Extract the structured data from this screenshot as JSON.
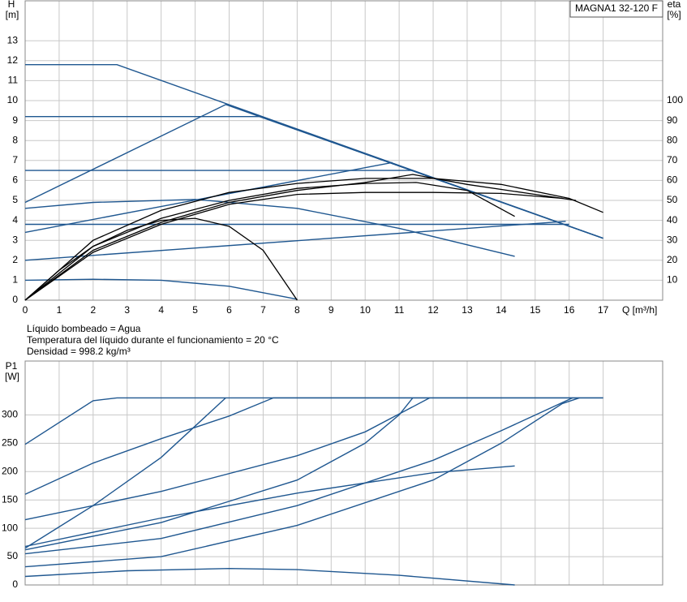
{
  "chart_data": [
    {
      "type": "line",
      "title": "MAGNA1 32-120 F",
      "y_label": "H",
      "y_unit": "[m]",
      "y2_label": "eta",
      "y2_unit": "[%]",
      "x_label": "Q [m³/h]",
      "xlim": [
        0,
        18.75
      ],
      "xticks": [
        0,
        1,
        2,
        3,
        4,
        5,
        6,
        7,
        8,
        9,
        10,
        11,
        12,
        13,
        14,
        15,
        16,
        17
      ],
      "ylim": [
        0,
        15
      ],
      "yticks": [
        0,
        1,
        2,
        3,
        4,
        5,
        6,
        7,
        8,
        9,
        10,
        11,
        12,
        13
      ],
      "y2lim": [
        0,
        150
      ],
      "y2ticks": [
        10,
        20,
        30,
        40,
        50,
        60,
        70,
        80,
        90,
        100
      ],
      "grid": true,
      "annotations": [
        "Líquido bombeado = Agua",
        "Temperatura del líquido durante el funcionamiento = 20 °C",
        "Densidad = 998.2 kg/m³"
      ],
      "series": [
        {
          "color": "#1f5790",
          "x": [
            0,
            2.7,
            17
          ],
          "values": [
            11.8,
            11.8,
            3.1
          ]
        },
        {
          "color": "#1f5790",
          "x": [
            0,
            6.9,
            17
          ],
          "values": [
            9.2,
            9.2,
            3.1
          ]
        },
        {
          "color": "#1f5790",
          "x": [
            0,
            5.9,
            17
          ],
          "values": [
            4.9,
            9.8,
            3.1
          ]
        },
        {
          "color": "#1f5790",
          "x": [
            0,
            11.4
          ],
          "values": [
            6.5,
            6.5
          ]
        },
        {
          "color": "#1f5790",
          "x": [
            0,
            10.8
          ],
          "values": [
            3.4,
            6.9
          ]
        },
        {
          "color": "#1f5790",
          "x": [
            0,
            16
          ],
          "values": [
            3.8,
            3.8
          ]
        },
        {
          "color": "#1f5790",
          "x": [
            0,
            15.9
          ],
          "values": [
            2.0,
            3.95
          ]
        },
        {
          "color": "#1f5790",
          "x": [
            0,
            2,
            5,
            8,
            11,
            14.4
          ],
          "values": [
            4.6,
            4.9,
            5.05,
            4.6,
            3.6,
            2.2
          ]
        },
        {
          "color": "#1f5790",
          "x": [
            0,
            2,
            4,
            6,
            8
          ],
          "values": [
            1.0,
            1.05,
            1.0,
            0.7,
            0.05
          ]
        },
        {
          "color": "#000000",
          "axis": "y2",
          "x": [
            0,
            1,
            2,
            3,
            4,
            5,
            6,
            7,
            8
          ],
          "values": [
            0,
            15,
            27,
            35,
            40,
            41,
            37,
            25,
            0
          ]
        },
        {
          "color": "#000000",
          "axis": "y2",
          "x": [
            0,
            2,
            4,
            6,
            8,
            10,
            12,
            14,
            16,
            17
          ],
          "values": [
            0,
            30,
            45,
            54,
            58.5,
            61,
            61,
            58,
            51,
            44
          ]
        },
        {
          "color": "#000000",
          "axis": "y2",
          "x": [
            0,
            2,
            4,
            6,
            8,
            10,
            11.5,
            13,
            14.4
          ],
          "values": [
            0,
            27,
            41,
            50,
            56,
            58.5,
            59,
            55,
            42
          ]
        },
        {
          "color": "#000000",
          "axis": "y2",
          "x": [
            0,
            2,
            4,
            6,
            8,
            10,
            12,
            14,
            15.8
          ],
          "values": [
            0,
            24,
            38,
            48,
            53,
            54,
            54,
            53.5,
            51
          ]
        },
        {
          "color": "#000000",
          "axis": "y2",
          "x": [
            0,
            2,
            4,
            6,
            8,
            10,
            11.4,
            13,
            15,
            16.2
          ],
          "values": [
            0,
            25,
            39,
            49,
            55,
            59,
            63,
            58,
            53,
            50
          ]
        }
      ]
    },
    {
      "type": "line",
      "y_label": "P1",
      "y_unit": "[W]",
      "xlim": [
        0,
        18.75
      ],
      "ylim": [
        0,
        395
      ],
      "yticks": [
        0,
        50,
        100,
        150,
        200,
        250,
        300
      ],
      "grid": true,
      "series": [
        {
          "color": "#1f5790",
          "x": [
            0,
            2,
            2.7,
            17
          ],
          "values": [
            248,
            325,
            330,
            330
          ]
        },
        {
          "color": "#1f5790",
          "x": [
            0,
            2,
            4,
            6,
            7.3,
            17
          ],
          "values": [
            160,
            215,
            258,
            298,
            330,
            330
          ]
        },
        {
          "color": "#1f5790",
          "x": [
            0,
            2,
            4,
            5.9
          ],
          "values": [
            65,
            140,
            225,
            330
          ]
        },
        {
          "color": "#1f5790",
          "x": [
            0,
            4,
            8,
            10,
            11.9
          ],
          "values": [
            115,
            165,
            228,
            270,
            330
          ]
        },
        {
          "color": "#1f5790",
          "x": [
            0,
            4,
            8,
            10,
            11,
            11.4
          ],
          "values": [
            62,
            110,
            185,
            250,
            300,
            330
          ]
        },
        {
          "color": "#1f5790",
          "x": [
            0,
            4,
            8,
            12,
            14,
            16.1
          ],
          "values": [
            55,
            82,
            140,
            220,
            272,
            330
          ]
        },
        {
          "color": "#1f5790",
          "x": [
            0,
            4,
            8,
            12,
            14,
            15.8,
            16.3
          ],
          "values": [
            32,
            50,
            105,
            185,
            250,
            320,
            330
          ]
        },
        {
          "color": "#1f5790",
          "x": [
            0,
            4,
            8,
            12,
            14.4
          ],
          "values": [
            68,
            118,
            162,
            198,
            210
          ]
        },
        {
          "color": "#1f5790",
          "x": [
            0,
            3,
            6,
            8,
            11,
            14.4
          ],
          "values": [
            15,
            25,
            29,
            27,
            17,
            0
          ]
        }
      ]
    }
  ]
}
